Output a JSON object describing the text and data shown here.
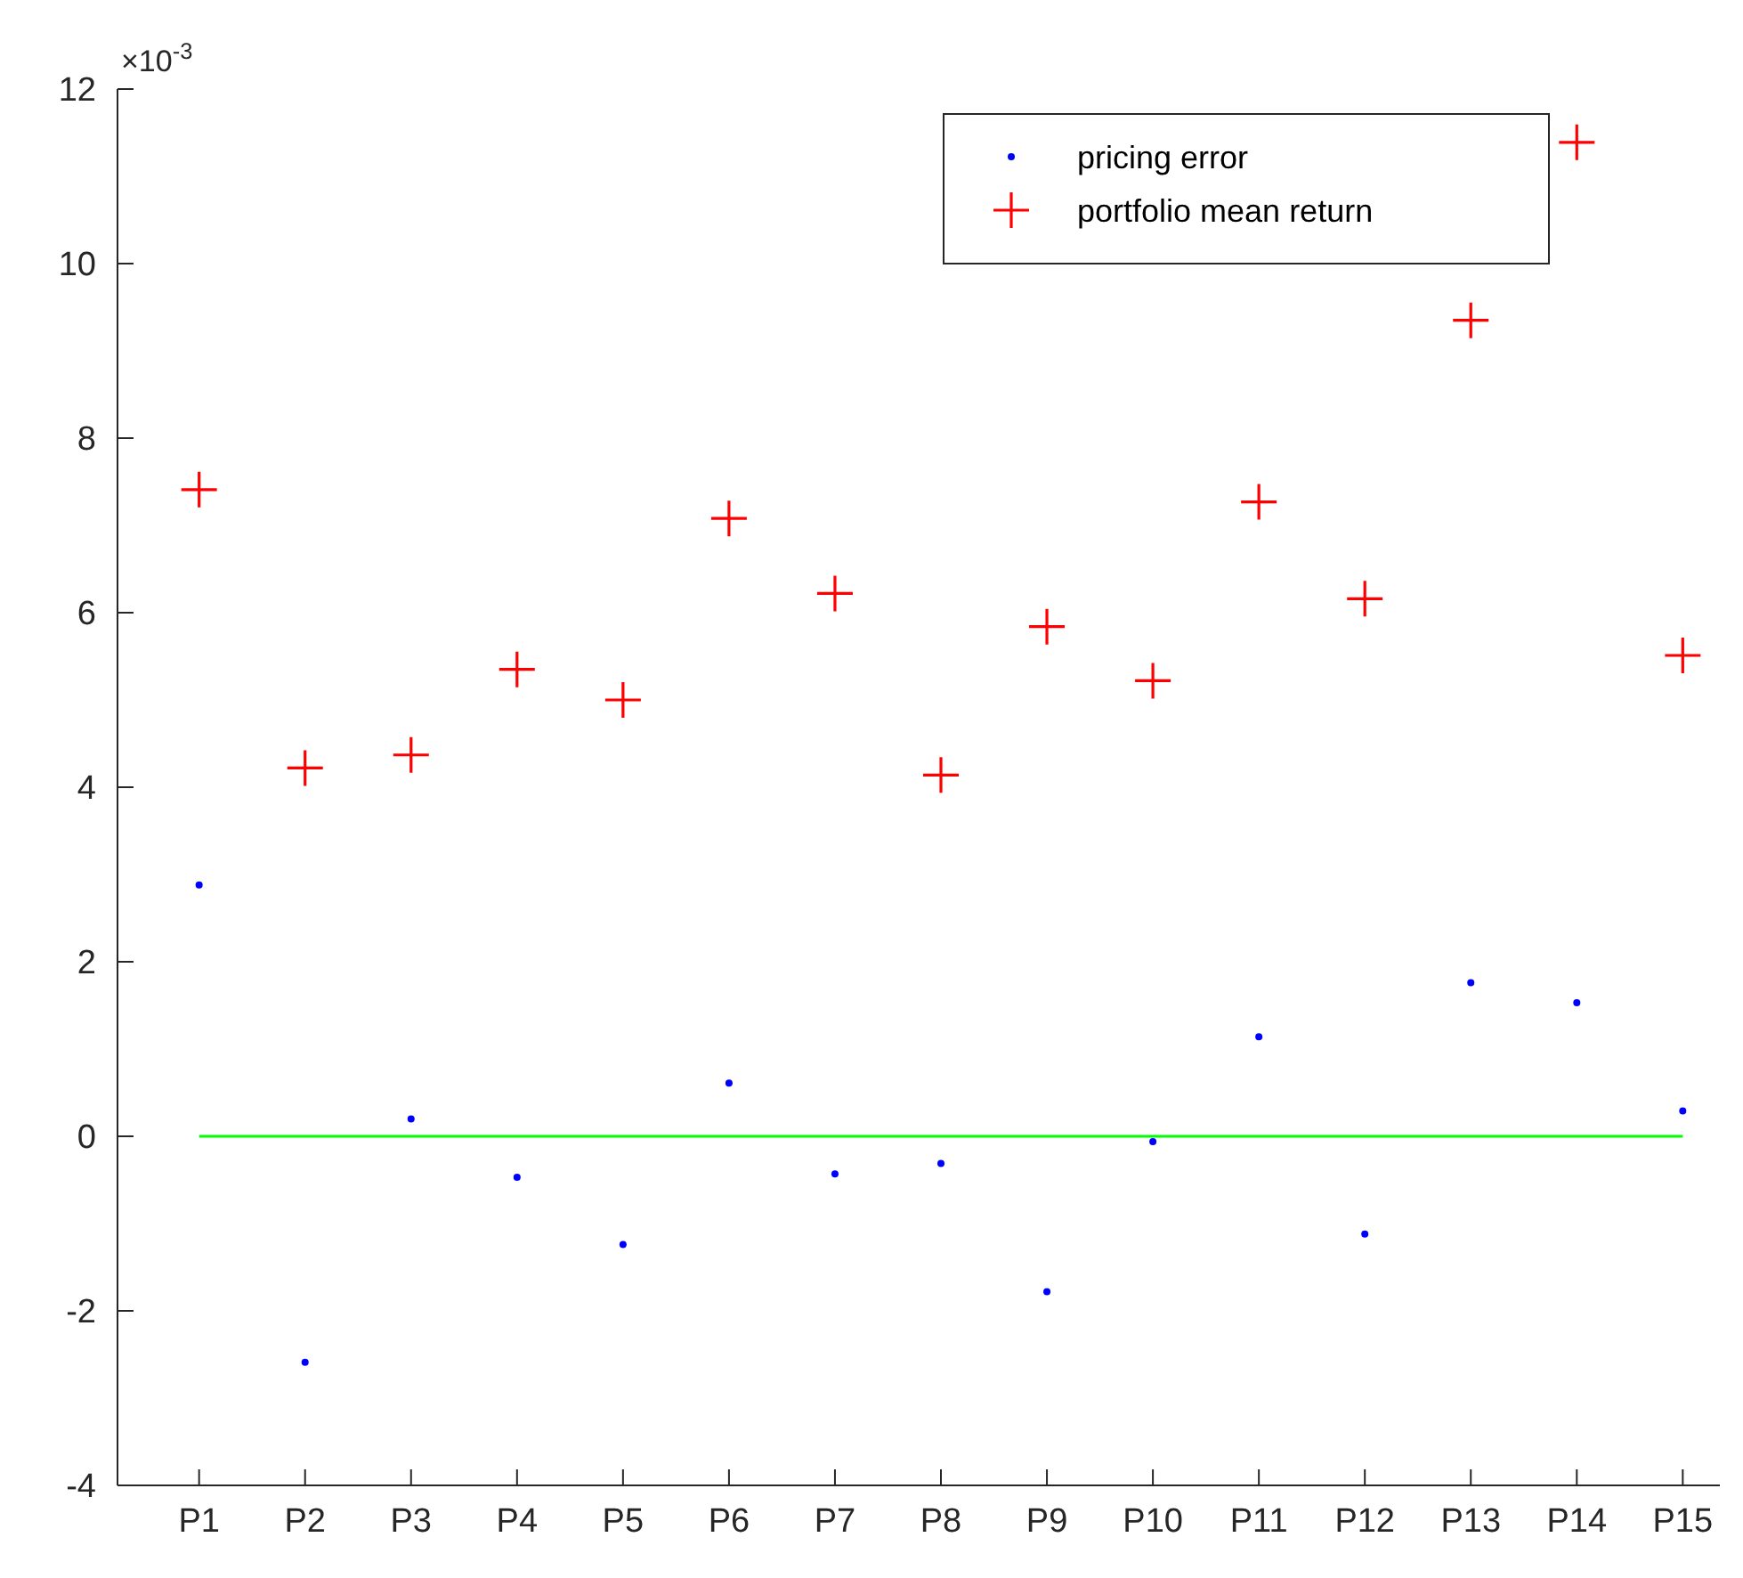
{
  "chart_data": {
    "type": "scatter",
    "categories": [
      "P1",
      "P2",
      "P3",
      "P4",
      "P5",
      "P6",
      "P7",
      "P8",
      "P9",
      "P10",
      "P11",
      "P12",
      "P13",
      "P14",
      "P15"
    ],
    "series": [
      {
        "name": "pricing error",
        "color": "#0000ff",
        "marker": "circle",
        "values": [
          2.88,
          -2.59,
          0.2,
          -0.47,
          -1.24,
          0.61,
          -0.43,
          -0.31,
          -1.78,
          -0.06,
          1.14,
          -1.12,
          1.76,
          1.53,
          0.29
        ]
      },
      {
        "name": "portfolio mean return",
        "color": "#ff0000",
        "marker": "cross",
        "values": [
          7.41,
          4.22,
          4.37,
          5.35,
          5.0,
          7.08,
          6.22,
          4.14,
          5.84,
          5.22,
          7.27,
          6.16,
          9.35,
          11.39,
          5.51
        ]
      },
      {
        "type": "line",
        "color": "#00ff00",
        "marker": "none",
        "line_style": "solid",
        "values": [
          0,
          0,
          0,
          0,
          0,
          0,
          0,
          0,
          0,
          0,
          0,
          0,
          0,
          0,
          0
        ]
      }
    ],
    "ylim": [
      -4,
      12
    ],
    "yticks": [
      -4,
      -2,
      0,
      2,
      4,
      6,
      8,
      10,
      12
    ],
    "annotations": [
      "×10$^{-3}$"
    ],
    "legend": "top right",
    "grid": false
  }
}
